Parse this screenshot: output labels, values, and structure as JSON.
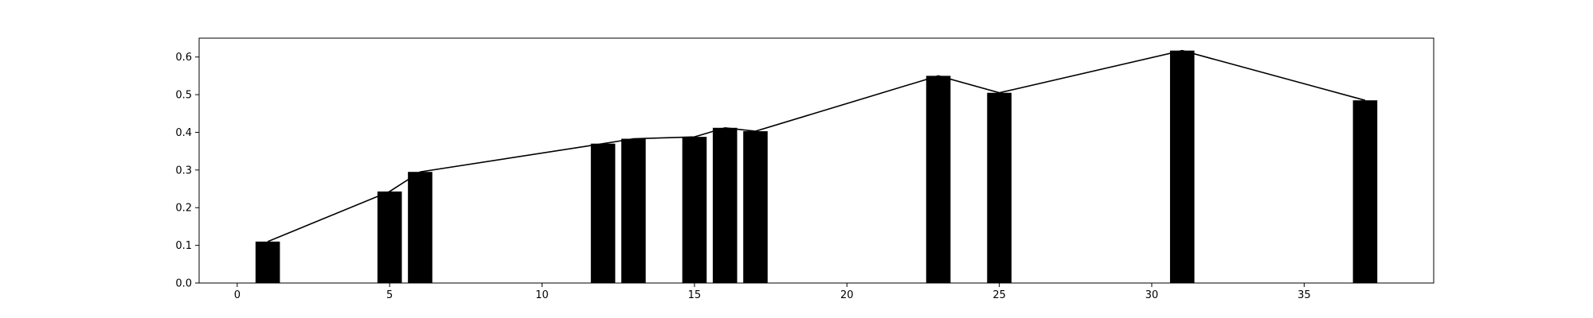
{
  "chart_data": {
    "type": "bar",
    "title": "",
    "xlabel": "",
    "ylabel": "",
    "xlim": [
      -1.25,
      39.25
    ],
    "ylim": [
      0,
      0.65
    ],
    "x_ticks": [
      0,
      5,
      10,
      15,
      20,
      25,
      30,
      35
    ],
    "y_ticks": [
      0.0,
      0.1,
      0.2,
      0.3,
      0.4,
      0.5,
      0.6
    ],
    "x_tick_labels": [
      "0",
      "5",
      "10",
      "15",
      "20",
      "25",
      "30",
      "35"
    ],
    "y_tick_labels": [
      "0.0",
      "0.1",
      "0.2",
      "0.3",
      "0.4",
      "0.5",
      "0.6"
    ],
    "bar_width": 0.8,
    "grid": false,
    "bar_color": "#000000",
    "line_color": "#000000",
    "x": [
      1,
      5,
      6,
      12,
      13,
      15,
      16,
      17,
      23,
      25,
      31,
      37
    ],
    "values": [
      0.11,
      0.243,
      0.295,
      0.37,
      0.383,
      0.388,
      0.412,
      0.403,
      0.55,
      0.505,
      0.617,
      0.485
    ]
  }
}
